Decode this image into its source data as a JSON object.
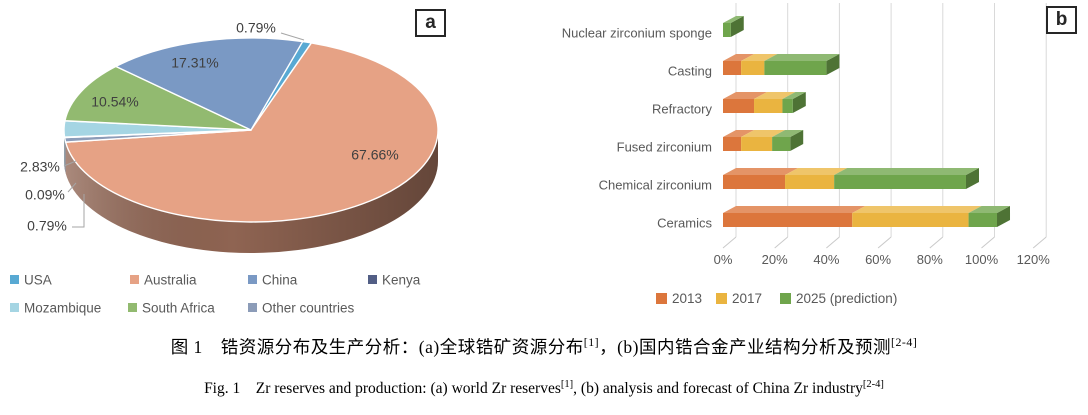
{
  "figure": {
    "panel_a_tag": "a",
    "panel_b_tag": "b"
  },
  "captions": {
    "cn_parts": [
      {
        "t": "图 1　锆资源分布及生产分析：(a)全球锆矿资源分布"
      },
      {
        "t": "[1]",
        "sup": true
      },
      {
        "t": "，(b)国内锆合金产业结构分析及预测"
      },
      {
        "t": "[2-4]",
        "sup": true
      }
    ],
    "en_parts": [
      {
        "t": "Fig. 1　Zr reserves and production: (a) world Zr reserves"
      },
      {
        "t": "[1]",
        "sup": true
      },
      {
        "t": ", (b) analysis and forecast of China Zr industry"
      },
      {
        "t": "[2-4]",
        "sup": true
      }
    ]
  },
  "chart_data": [
    {
      "type": "pie",
      "style": "3d",
      "panel": "a",
      "labels": [
        "USA",
        "Australia",
        "China",
        "Kenya",
        "Mozambique",
        "South Africa",
        "Other countries"
      ],
      "values": [
        0.79,
        67.66,
        17.31,
        0.09,
        2.83,
        10.54,
        0.79
      ],
      "value_labels": [
        "0.79%",
        "67.66%",
        "17.31%",
        "0.09%",
        "2.83%",
        "10.54%",
        "0.79%"
      ],
      "colors": [
        "#58A9D3",
        "#E6A285",
        "#7A99C4",
        "#525E85",
        "#A5D5E3",
        "#92BA70",
        "#8C9CB8"
      ],
      "clockwise_order": [
        0,
        1,
        6,
        3,
        4,
        5,
        2
      ],
      "start_angle_deg": 16,
      "legend_position": "bottom",
      "legend_rows": [
        [
          0,
          1,
          2,
          3
        ],
        [
          4,
          5,
          6
        ]
      ]
    },
    {
      "type": "bar",
      "style": "3d-horizontal-stacked",
      "panel": "b",
      "categories": [
        "Nuclear zirconium sponge",
        "Casting",
        "Refractory",
        "Fused zirconium",
        "Chemical zirconium",
        "Ceramics"
      ],
      "series": [
        {
          "name": "2013",
          "color": "#DC763C",
          "values": [
            0,
            7,
            12,
            7,
            24,
            50
          ]
        },
        {
          "name": "2017",
          "color": "#EAB440",
          "values": [
            0,
            9,
            11,
            12,
            19,
            45
          ]
        },
        {
          "name": "2025 (prediction)",
          "color": "#6FA54C",
          "values": [
            3,
            24,
            4,
            7,
            51,
            11
          ]
        }
      ],
      "x_ticks": [
        "0%",
        "20%",
        "40%",
        "60%",
        "80%",
        "100%",
        "120%"
      ],
      "xlim": [
        0,
        120
      ],
      "grid": true,
      "legend_position": "bottom"
    }
  ]
}
